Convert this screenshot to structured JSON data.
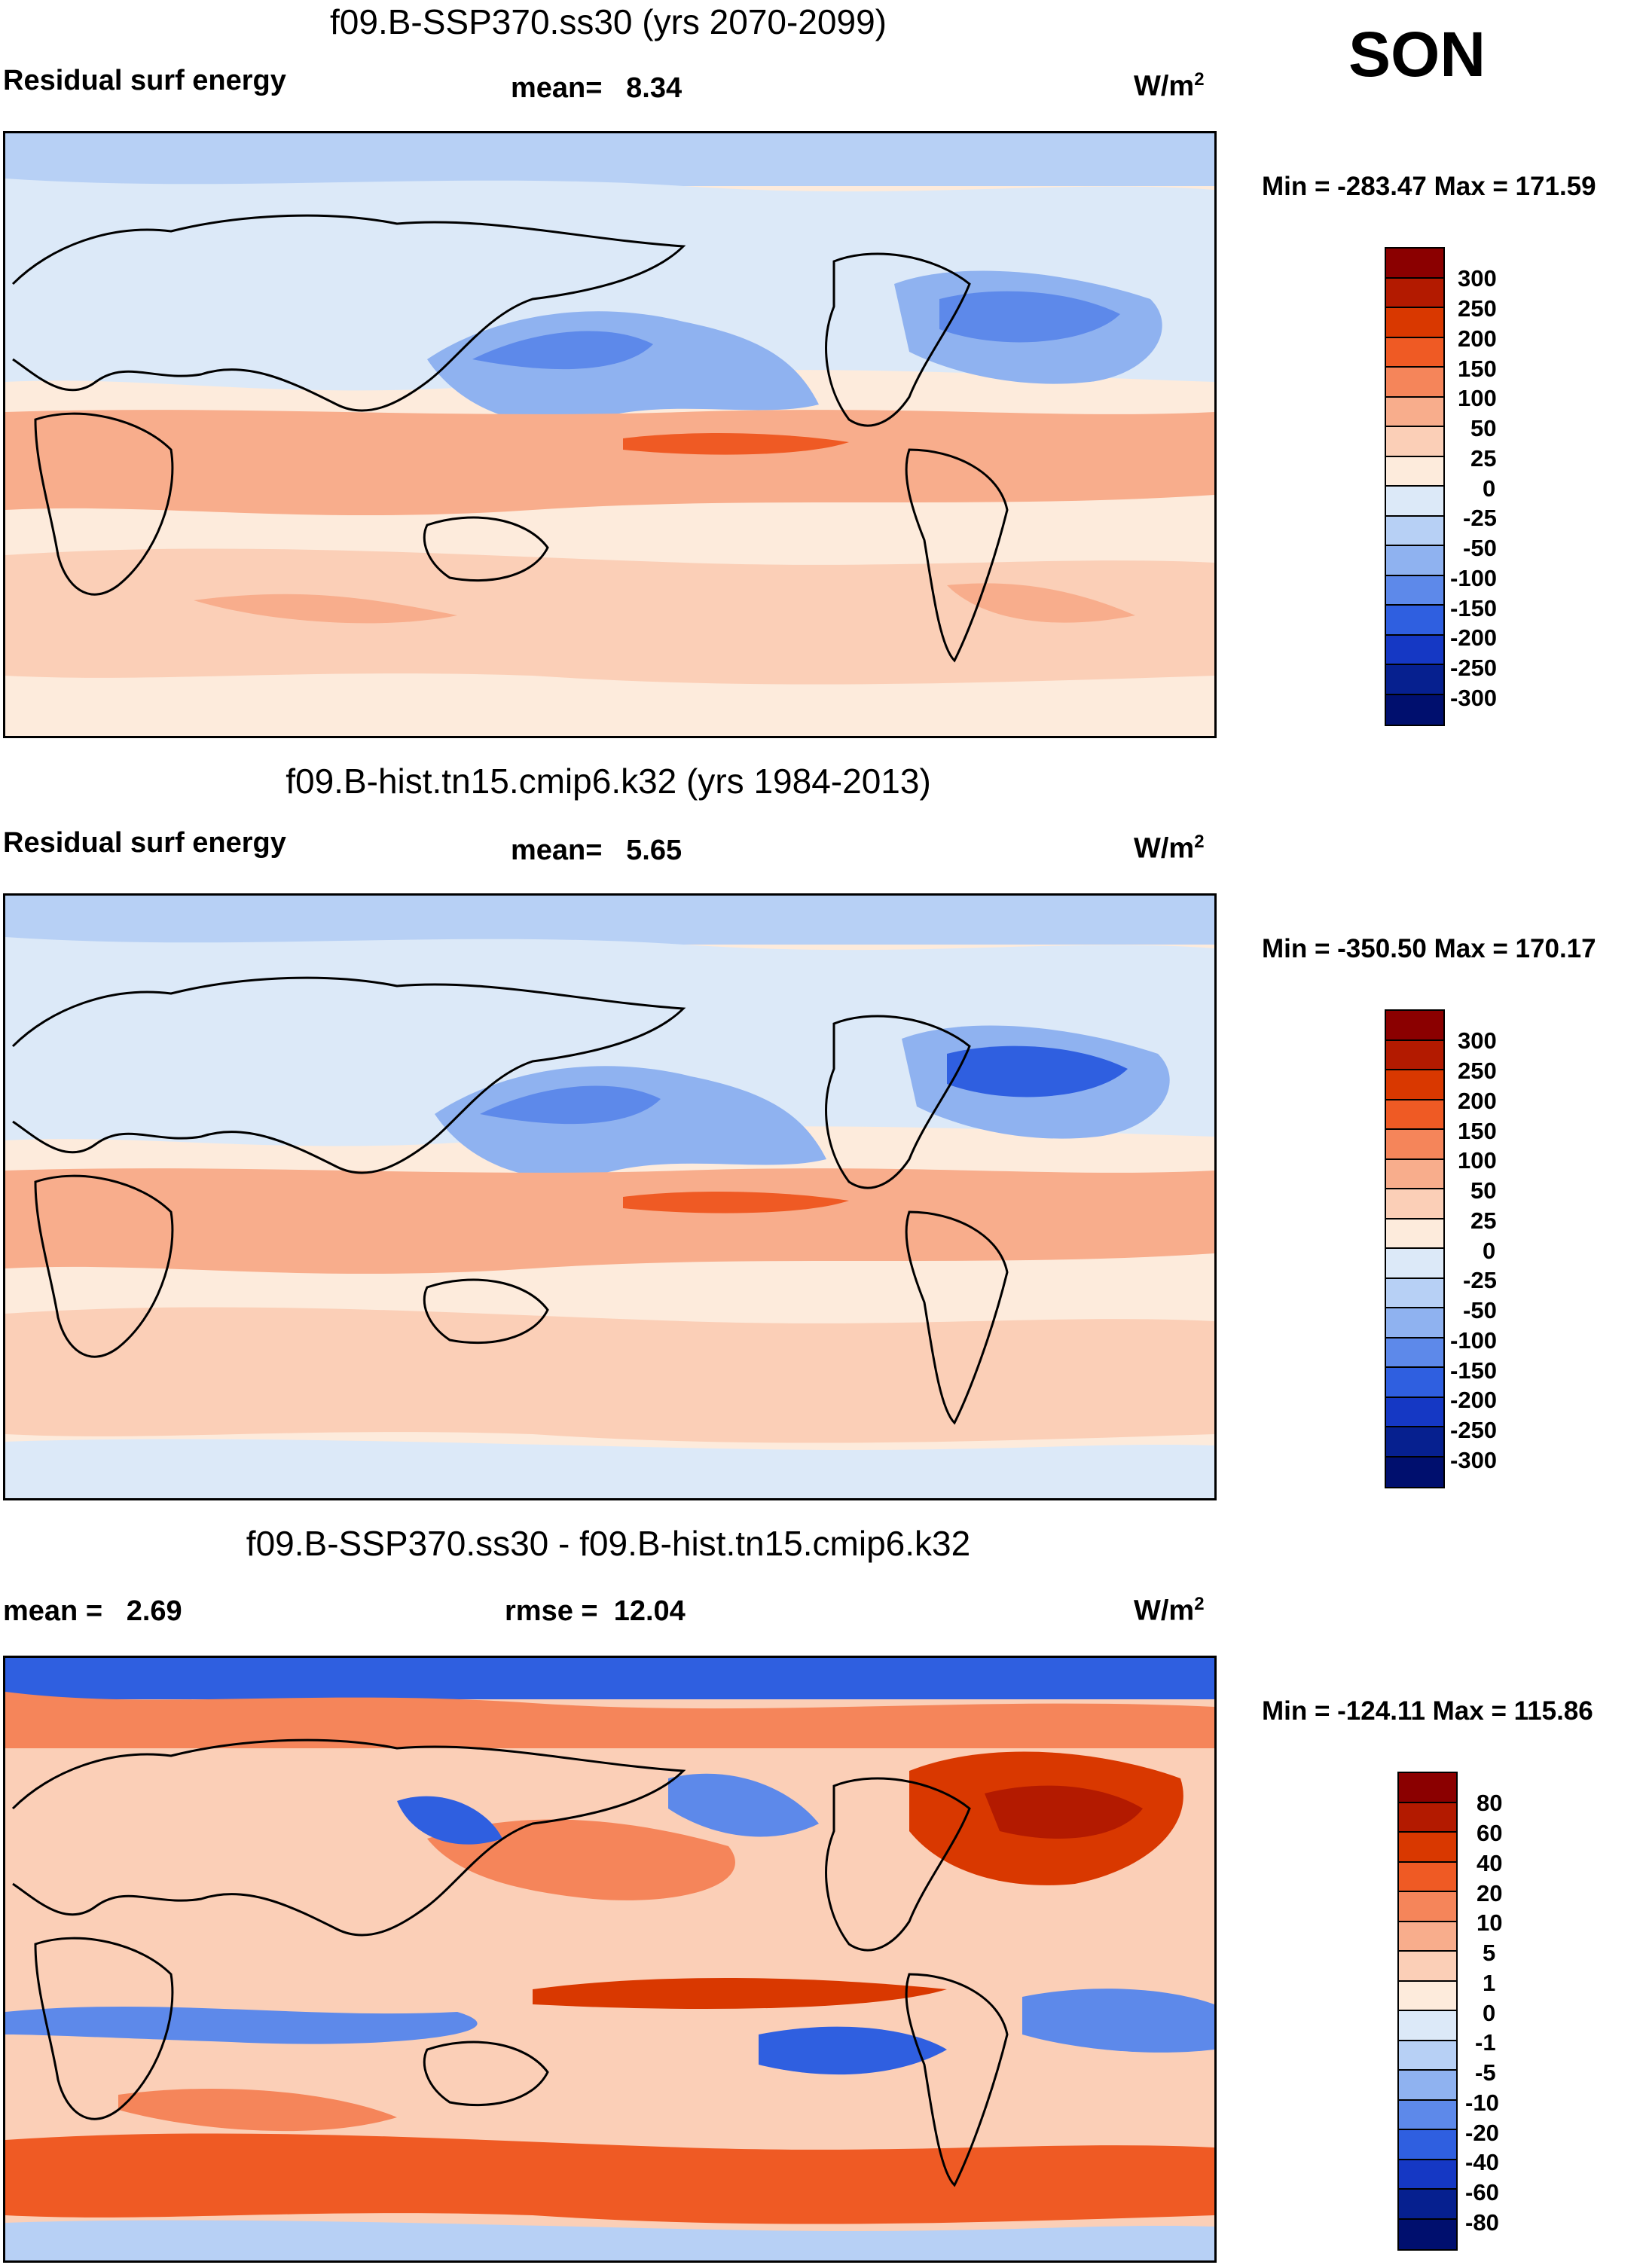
{
  "season": "SON",
  "panels": [
    {
      "title": "f09.B-SSP370.ss30 (yrs 2070-2099)",
      "left_label": "Residual surf energy",
      "center_label": "mean=   8.34",
      "units_base": "W/m",
      "units_exp": "2",
      "minmax": "Min = -283.47 Max = 171.59",
      "levels": [
        "300",
        "250",
        "200",
        "150",
        "100",
        "50",
        "25",
        "0",
        "-25",
        "-50",
        "-100",
        "-150",
        "-200",
        "-250",
        "-300"
      ]
    },
    {
      "title": "f09.B-hist.tn15.cmip6.k32 (yrs 1984-2013)",
      "left_label": "Residual surf energy",
      "center_label": "mean=   5.65",
      "units_base": "W/m",
      "units_exp": "2",
      "minmax": "Min = -350.50 Max = 170.17",
      "levels": [
        "300",
        "250",
        "200",
        "150",
        "100",
        "50",
        "25",
        "0",
        "-25",
        "-50",
        "-100",
        "-150",
        "-200",
        "-250",
        "-300"
      ]
    },
    {
      "title": "f09.B-SSP370.ss30 - f09.B-hist.tn15.cmip6.k32",
      "left_label": "mean =   2.69",
      "center_label": "rmse =  12.04",
      "units_base": "W/m",
      "units_exp": "2",
      "minmax": "Min = -124.11 Max = 115.86",
      "levels": [
        "80",
        "60",
        "40",
        "20",
        "10",
        "5",
        "1",
        "0",
        "-1",
        "-5",
        "-10",
        "-20",
        "-40",
        "-60",
        "-80"
      ]
    }
  ],
  "colorbar_colors": [
    "#8b0000",
    "#b31a00",
    "#d93800",
    "#ef5a24",
    "#f5855a",
    "#f8ad8c",
    "#fbcfb7",
    "#fdebdc",
    "#dce9f8",
    "#b7d0f5",
    "#8fb2f0",
    "#5d89ea",
    "#2f5fe0",
    "#1538c4",
    "#06208f",
    "#000f6e"
  ]
}
